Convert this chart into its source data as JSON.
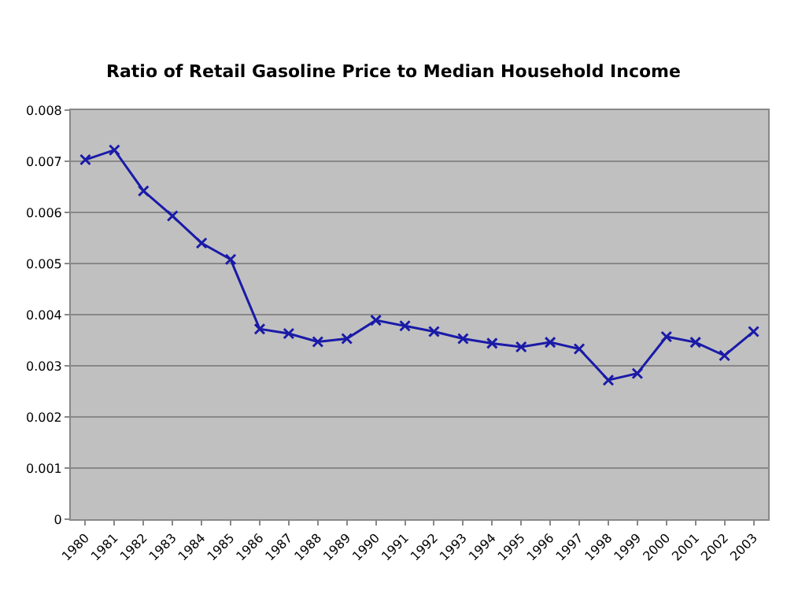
{
  "chart_data": {
    "type": "line",
    "title": "Ratio of Retail Gasoline Price to Median Household Income",
    "categories": [
      "1980",
      "1981",
      "1982",
      "1983",
      "1984",
      "1985",
      "1986",
      "1987",
      "1988",
      "1989",
      "1990",
      "1991",
      "1992",
      "1993",
      "1994",
      "1995",
      "1996",
      "1997",
      "1998",
      "1999",
      "2000",
      "2001",
      "2002",
      "2003"
    ],
    "series": [
      {
        "color": "#1a1aa8",
        "values": [
          0.00703,
          0.00722,
          0.00642,
          0.00593,
          0.0054,
          0.00508,
          0.00372,
          0.00363,
          0.00347,
          0.00353,
          0.00389,
          0.00378,
          0.00367,
          0.00353,
          0.00344,
          0.00337,
          0.00346,
          0.00333,
          0.00272,
          0.00285,
          0.00357,
          0.00346,
          0.0032,
          0.00367
        ]
      }
    ],
    "ylim": [
      0,
      0.008
    ],
    "yticks": [
      0,
      0.001,
      0.002,
      0.003,
      0.004,
      0.005,
      0.006,
      0.007,
      0.008
    ],
    "grid": "y",
    "marker": "cross",
    "line_style": "solid",
    "legend": false
  }
}
